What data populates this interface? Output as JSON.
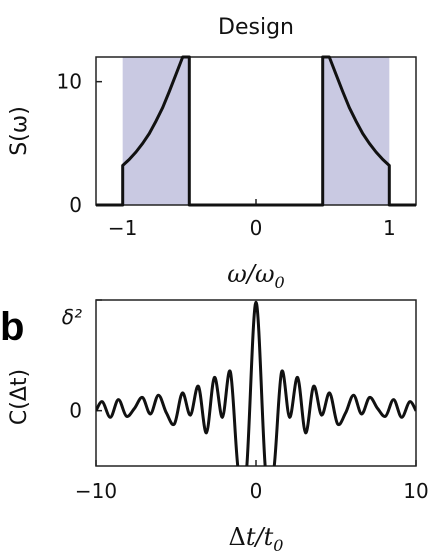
{
  "panel_b_letter": "b",
  "colors": {
    "curve": "#111111",
    "shade": "#c9c9e2",
    "frame": "#222222"
  },
  "chart_data": [
    {
      "type": "line",
      "title": "Design",
      "xlabel": "ω/ω0",
      "ylabel": "S(ω)",
      "xlim": [
        -1.2,
        1.2
      ],
      "ylim": [
        0,
        12
      ],
      "xticks": [
        -1,
        0,
        1
      ],
      "xtick_labels": [
        "−1",
        "0",
        "1"
      ],
      "yticks": [
        0,
        10
      ],
      "ytick_labels": [
        "0",
        "10"
      ],
      "shaded_bands": [
        [
          -1.0,
          -0.5
        ],
        [
          0.5,
          1.0
        ]
      ],
      "series": [
        {
          "x": [
            -1.2,
            -1.0,
            -1.0,
            -0.95,
            -0.9,
            -0.85,
            -0.8,
            -0.75,
            -0.7,
            -0.65,
            -0.6,
            -0.55,
            -0.5,
            -0.5,
            0.5,
            0.5,
            0.55,
            0.6,
            0.65,
            0.7,
            0.75,
            0.8,
            0.85,
            0.9,
            0.95,
            1.0,
            1.0,
            1.2
          ],
          "y": [
            0,
            0,
            3.2,
            3.7,
            4.3,
            5.0,
            5.8,
            6.8,
            7.9,
            9.2,
            10.6,
            12.0,
            12.0,
            0,
            0,
            12.0,
            12.0,
            10.6,
            9.2,
            7.9,
            6.8,
            5.8,
            5.0,
            4.3,
            3.7,
            3.2,
            0,
            0
          ]
        }
      ]
    },
    {
      "type": "line",
      "title": "",
      "xlabel": "Δt/t0",
      "ylabel": "C(Δt)",
      "xlim": [
        -10,
        10
      ],
      "ylim": [
        -0.5,
        1.0
      ],
      "xticks": [
        -10,
        0,
        10
      ],
      "xtick_labels": [
        "−10",
        "0",
        "10"
      ],
      "yticks": [
        0,
        1
      ],
      "ytick_labels": [
        "0",
        "δ²"
      ],
      "series": [
        {
          "x": [
            -10,
            -9.6,
            -9.1,
            -8.6,
            -8.1,
            -7.6,
            -7.1,
            -6.6,
            -6.1,
            -5.6,
            -5.1,
            -4.6,
            -4.1,
            -3.6,
            -3.1,
            -2.6,
            -2.1,
            -1.6,
            -1.1,
            -0.6,
            0.0,
            0.6,
            1.1,
            1.6,
            2.1,
            2.6,
            3.1,
            3.6,
            4.1,
            4.6,
            5.1,
            5.6,
            6.1,
            6.6,
            7.1,
            7.6,
            8.1,
            8.6,
            9.1,
            9.6,
            10
          ],
          "y": [
            0.0,
            0.08,
            -0.06,
            0.1,
            -0.05,
            0.02,
            0.12,
            -0.03,
            0.14,
            -0.02,
            -0.12,
            0.16,
            -0.04,
            0.22,
            -0.2,
            0.3,
            -0.06,
            0.35,
            -0.55,
            -0.55,
            0.98,
            -0.55,
            -0.55,
            0.35,
            -0.06,
            0.3,
            -0.2,
            0.22,
            -0.04,
            0.16,
            -0.12,
            -0.02,
            0.14,
            -0.03,
            0.12,
            0.02,
            -0.05,
            0.1,
            -0.06,
            0.08,
            0.0
          ]
        }
      ]
    }
  ]
}
